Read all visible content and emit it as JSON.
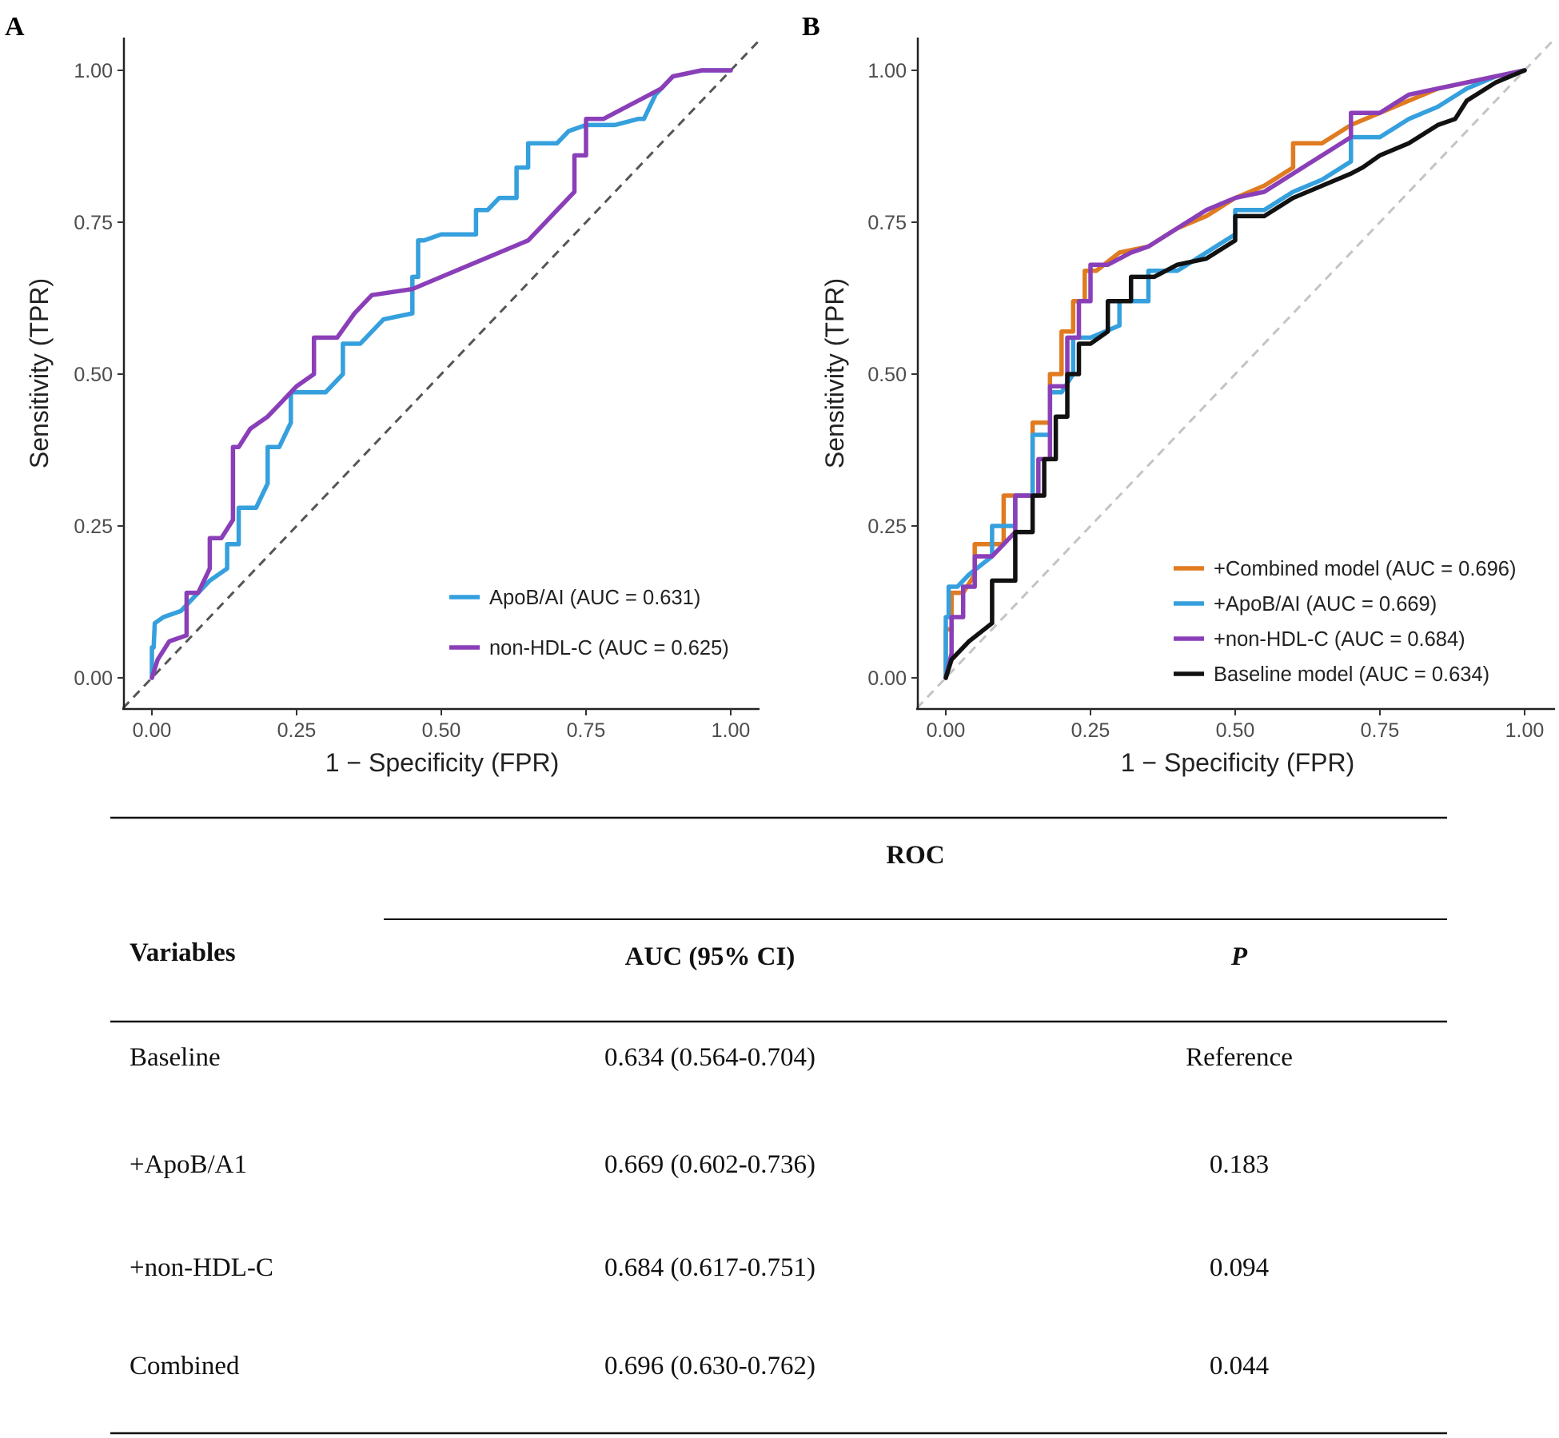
{
  "chart_data": [
    {
      "panel": "A",
      "type": "line",
      "xlabel": "1 − Specificity (FPR)",
      "ylabel": "Sensitivity (TPR)",
      "xlim": [
        0,
        1
      ],
      "ylim": [
        0,
        1
      ],
      "xticks": [
        "0.00",
        "0.25",
        "0.50",
        "0.75",
        "1.00"
      ],
      "yticks": [
        "0.00",
        "0.25",
        "0.50",
        "0.75",
        "1.00"
      ],
      "legend_position": "bottom-right",
      "reference_line": "diagonal dashed",
      "series": [
        {
          "name": "ApoB/AI (AUC = 0.631)",
          "color": "#35a0dd",
          "x": [
            0,
            0.003,
            0.005,
            0.02,
            0.05,
            0.08,
            0.1,
            0.13,
            0.15,
            0.18,
            0.2,
            0.22,
            0.24,
            0.25,
            0.28,
            0.3,
            0.33,
            0.36,
            0.4,
            0.45,
            0.46,
            0.47,
            0.5,
            0.55,
            0.56,
            0.58,
            0.59,
            0.6,
            0.63,
            0.65,
            0.7,
            0.72,
            0.75,
            0.8,
            0.84,
            0.85,
            0.87,
            0.9,
            0.95,
            0.98,
            1.0
          ],
          "y": [
            0,
            0.05,
            0.09,
            0.1,
            0.11,
            0.14,
            0.16,
            0.18,
            0.22,
            0.28,
            0.32,
            0.38,
            0.42,
            0.47,
            0.47,
            0.47,
            0.5,
            0.55,
            0.59,
            0.6,
            0.66,
            0.72,
            0.73,
            0.73,
            0.73,
            0.77,
            0.78,
            0.79,
            0.79,
            0.84,
            0.88,
            0.9,
            0.91,
            0.91,
            0.92,
            0.92,
            0.96,
            0.99,
            1.0,
            1.0,
            1.0
          ]
        },
        {
          "name": "non-HDL-C (AUC = 0.625)",
          "color": "#8a3fb8",
          "x": [
            0,
            0.01,
            0.03,
            0.06,
            0.08,
            0.1,
            0.12,
            0.14,
            0.15,
            0.17,
            0.2,
            0.22,
            0.25,
            0.28,
            0.32,
            0.35,
            0.38,
            0.45,
            0.5,
            0.55,
            0.6,
            0.65,
            0.67,
            0.7,
            0.73,
            0.75,
            0.76,
            0.78,
            0.8,
            0.84,
            0.86,
            0.88,
            0.9,
            0.95,
            1.0
          ],
          "y": [
            0,
            0.03,
            0.06,
            0.07,
            0.14,
            0.18,
            0.23,
            0.26,
            0.38,
            0.41,
            0.43,
            0.45,
            0.48,
            0.5,
            0.56,
            0.6,
            0.63,
            0.64,
            0.66,
            0.68,
            0.7,
            0.72,
            0.74,
            0.77,
            0.8,
            0.86,
            0.92,
            0.92,
            0.93,
            0.95,
            0.96,
            0.97,
            0.99,
            1.0,
            1.0
          ]
        }
      ]
    },
    {
      "panel": "B",
      "type": "line",
      "xlabel": "1 − Specificity (FPR)",
      "ylabel": "Sensitivity (TPR)",
      "xlim": [
        0,
        1
      ],
      "ylim": [
        0,
        1
      ],
      "xticks": [
        "0.00",
        "0.25",
        "0.50",
        "0.75",
        "1.00"
      ],
      "yticks": [
        "0.00",
        "0.25",
        "0.50",
        "0.75",
        "1.00"
      ],
      "legend_position": "bottom-right",
      "reference_line": "diagonal dashed",
      "series": [
        {
          "name": "+Combined model (AUC = 0.696)",
          "color": "#e07b20",
          "x": [
            0,
            0.01,
            0.03,
            0.05,
            0.1,
            0.15,
            0.18,
            0.2,
            0.22,
            0.24,
            0.26,
            0.3,
            0.35,
            0.4,
            0.45,
            0.5,
            0.55,
            0.6,
            0.65,
            0.7,
            0.75,
            0.8,
            0.85,
            0.9,
            0.95,
            1.0
          ],
          "y": [
            0,
            0.08,
            0.14,
            0.17,
            0.22,
            0.3,
            0.42,
            0.5,
            0.57,
            0.62,
            0.67,
            0.7,
            0.71,
            0.74,
            0.76,
            0.79,
            0.81,
            0.84,
            0.88,
            0.91,
            0.93,
            0.95,
            0.97,
            0.98,
            0.99,
            1.0
          ]
        },
        {
          "name": "+ApoB/AI (AUC = 0.669)",
          "color": "#35a0dd",
          "x": [
            0,
            0.005,
            0.02,
            0.04,
            0.08,
            0.12,
            0.15,
            0.18,
            0.2,
            0.22,
            0.25,
            0.3,
            0.35,
            0.4,
            0.45,
            0.5,
            0.55,
            0.6,
            0.65,
            0.7,
            0.75,
            0.8,
            0.85,
            0.9,
            0.95,
            1.0
          ],
          "y": [
            0,
            0.1,
            0.15,
            0.17,
            0.2,
            0.25,
            0.3,
            0.4,
            0.47,
            0.5,
            0.56,
            0.58,
            0.62,
            0.67,
            0.7,
            0.73,
            0.77,
            0.8,
            0.82,
            0.85,
            0.89,
            0.92,
            0.94,
            0.97,
            0.99,
            1.0
          ]
        },
        {
          "name": "+non-HDL-C (AUC = 0.684)",
          "color": "#8a3fb8",
          "x": [
            0,
            0.01,
            0.03,
            0.05,
            0.08,
            0.12,
            0.16,
            0.18,
            0.21,
            0.23,
            0.25,
            0.28,
            0.32,
            0.35,
            0.4,
            0.45,
            0.5,
            0.55,
            0.6,
            0.65,
            0.7,
            0.75,
            0.8,
            0.85,
            0.9,
            0.95,
            1.0
          ],
          "y": [
            0,
            0.04,
            0.1,
            0.15,
            0.2,
            0.24,
            0.3,
            0.36,
            0.48,
            0.56,
            0.62,
            0.68,
            0.7,
            0.71,
            0.74,
            0.77,
            0.79,
            0.8,
            0.83,
            0.86,
            0.89,
            0.93,
            0.96,
            0.97,
            0.98,
            0.99,
            1.0
          ]
        },
        {
          "name": "Baseline model (AUC = 0.634)",
          "color": "#111111",
          "x": [
            0,
            0.01,
            0.04,
            0.08,
            0.12,
            0.15,
            0.17,
            0.19,
            0.21,
            0.23,
            0.25,
            0.28,
            0.32,
            0.36,
            0.4,
            0.45,
            0.5,
            0.55,
            0.6,
            0.65,
            0.7,
            0.72,
            0.75,
            0.8,
            0.85,
            0.88,
            0.9,
            0.95,
            1.0
          ],
          "y": [
            0,
            0.03,
            0.06,
            0.09,
            0.16,
            0.24,
            0.3,
            0.36,
            0.43,
            0.5,
            0.55,
            0.57,
            0.62,
            0.66,
            0.68,
            0.69,
            0.72,
            0.76,
            0.79,
            0.81,
            0.83,
            0.84,
            0.86,
            0.88,
            0.91,
            0.92,
            0.95,
            0.98,
            1.0
          ]
        }
      ]
    },
    {
      "type": "table",
      "group_header": "ROC",
      "columns": [
        "Variables",
        "AUC (95% CI)",
        "P"
      ],
      "rows": [
        [
          "Baseline",
          "0.634 (0.564-0.704)",
          "Reference"
        ],
        [
          "+ApoB/A1",
          "0.669 (0.602-0.736)",
          "0.183"
        ],
        [
          "+non-HDL-C",
          "0.684 (0.617-0.751)",
          "0.094"
        ],
        [
          "Combined",
          "0.696 (0.630-0.762)",
          "0.044"
        ]
      ]
    }
  ],
  "panel_labels": [
    "A",
    "B"
  ]
}
